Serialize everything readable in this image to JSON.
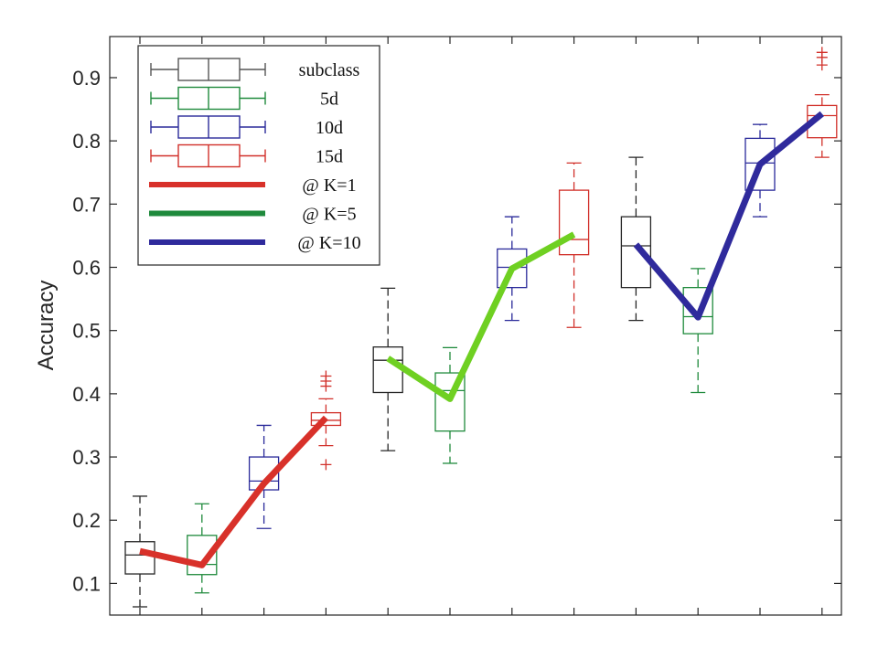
{
  "chart_data": {
    "type": "box",
    "title": "",
    "xlabel": "",
    "ylabel": "Accuracy",
    "ylim": [
      0.05,
      0.965
    ],
    "yticks": [
      "0.1",
      "0.2",
      "0.3",
      "0.4",
      "0.5",
      "0.6",
      "0.7",
      "0.8",
      "0.9"
    ],
    "grid": false,
    "legend_position": "top-left",
    "groups": [
      "subclass",
      "5d",
      "10d",
      "15d",
      "subclass",
      "5d",
      "10d",
      "15d",
      "subclass",
      "5d",
      "10d",
      "15d"
    ],
    "colors": {
      "subclass": "#262626",
      "5d": "#1f8a3c",
      "10d": "#2a2a9a",
      "15d": "#d1302a"
    },
    "boxes": [
      {
        "group": "subclass",
        "k": 1,
        "whisker_low": 0.063,
        "q1": 0.115,
        "median": 0.145,
        "q3": 0.166,
        "whisker_high": 0.238,
        "outliers": []
      },
      {
        "group": "5d",
        "k": 1,
        "whisker_low": 0.085,
        "q1": 0.114,
        "median": 0.13,
        "q3": 0.176,
        "whisker_high": 0.226,
        "outliers": []
      },
      {
        "group": "10d",
        "k": 1,
        "whisker_low": 0.187,
        "q1": 0.248,
        "median": 0.262,
        "q3": 0.3,
        "whisker_high": 0.35,
        "outliers": []
      },
      {
        "group": "15d",
        "k": 1,
        "whisker_low": 0.318,
        "q1": 0.35,
        "median": 0.358,
        "q3": 0.37,
        "whisker_high": 0.392,
        "outliers": [
          0.288,
          0.412,
          0.42,
          0.428
        ]
      },
      {
        "group": "subclass",
        "k": 5,
        "whisker_low": 0.31,
        "q1": 0.402,
        "median": 0.453,
        "q3": 0.474,
        "whisker_high": 0.567,
        "outliers": []
      },
      {
        "group": "5d",
        "k": 5,
        "whisker_low": 0.29,
        "q1": 0.341,
        "median": 0.405,
        "q3": 0.433,
        "whisker_high": 0.473,
        "outliers": []
      },
      {
        "group": "10d",
        "k": 5,
        "whisker_low": 0.516,
        "q1": 0.568,
        "median": 0.6,
        "q3": 0.629,
        "whisker_high": 0.68,
        "outliers": []
      },
      {
        "group": "15d",
        "k": 5,
        "whisker_low": 0.505,
        "q1": 0.62,
        "median": 0.644,
        "q3": 0.722,
        "whisker_high": 0.765,
        "outliers": []
      },
      {
        "group": "subclass",
        "k": 10,
        "whisker_low": 0.516,
        "q1": 0.568,
        "median": 0.634,
        "q3": 0.68,
        "whisker_high": 0.774,
        "outliers": []
      },
      {
        "group": "5d",
        "k": 10,
        "whisker_low": 0.402,
        "q1": 0.495,
        "median": 0.522,
        "q3": 0.568,
        "whisker_high": 0.598,
        "outliers": []
      },
      {
        "group": "10d",
        "k": 10,
        "whisker_low": 0.68,
        "q1": 0.722,
        "median": 0.765,
        "q3": 0.804,
        "whisker_high": 0.826,
        "outliers": []
      },
      {
        "group": "15d",
        "k": 10,
        "whisker_low": 0.774,
        "q1": 0.805,
        "median": 0.84,
        "q3": 0.856,
        "whisker_high": 0.873,
        "outliers": [
          0.92,
          0.932,
          0.94
        ]
      }
    ],
    "series": [
      {
        "name": "@ K=1",
        "color": "#d8312a",
        "legend_color": "#d8312a",
        "values": [
          0.151,
          0.129,
          0.258,
          0.362
        ]
      },
      {
        "name": "@ K=5",
        "color": "#6fd022",
        "legend_color": "#1f8a3c",
        "values": [
          0.456,
          0.392,
          0.598,
          0.652
        ]
      },
      {
        "name": "@ K=10",
        "color": "#2f2a9c",
        "legend_color": "#2f2a9c",
        "values": [
          0.636,
          0.521,
          0.763,
          0.843
        ]
      }
    ],
    "legend": [
      {
        "label": "subclass",
        "kind": "box",
        "color": "#555555"
      },
      {
        "label": "5d",
        "kind": "box",
        "color": "#1f8a3c"
      },
      {
        "label": "10d",
        "kind": "box",
        "color": "#2a2a9a"
      },
      {
        "label": "15d",
        "kind": "box",
        "color": "#d1302a"
      },
      {
        "label": "@ K=1",
        "kind": "line",
        "color": "#d8312a"
      },
      {
        "label": "@ K=5",
        "kind": "line",
        "color": "#1f8a3c"
      },
      {
        "label": "@ K=10",
        "kind": "line",
        "color": "#2f2a9c"
      }
    ]
  }
}
